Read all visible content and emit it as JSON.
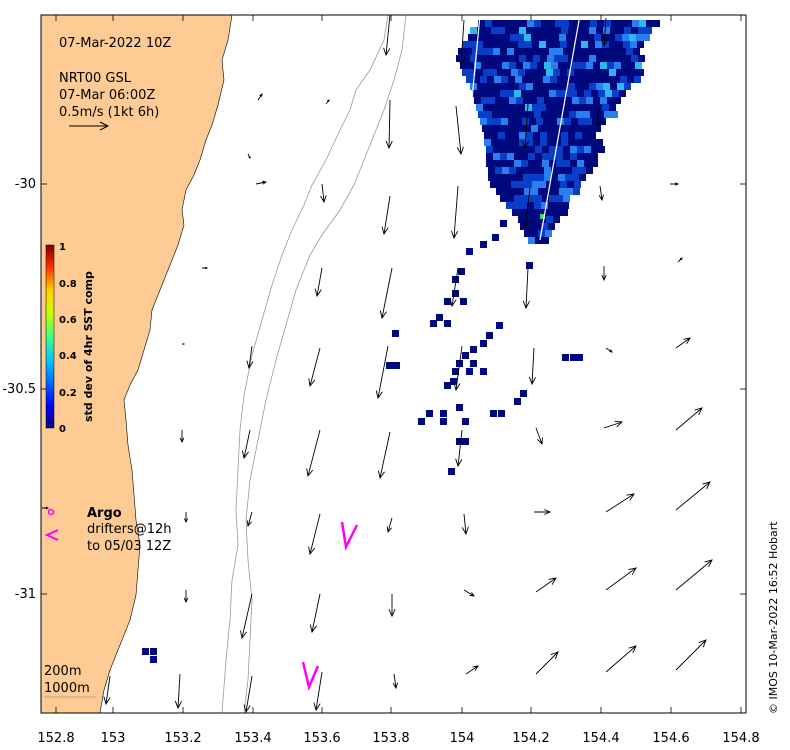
{
  "header": {
    "date": "07-Mar-2022 10Z",
    "product": "NRT00 GSL",
    "time": "07-Mar 06:00Z",
    "scale": "0.5m/s (1kt 6h)"
  },
  "colorbar": {
    "label": "std dev of 4hr SST comp",
    "ticks": [
      "1",
      "0.8",
      "0.6",
      "0.4",
      "0.2",
      "0"
    ]
  },
  "axes": {
    "x_ticks": [
      "152.8",
      "153",
      "153.2",
      "153.4",
      "153.6",
      "153.8",
      "154",
      "154.2",
      "154.4",
      "154.6",
      "154.8"
    ],
    "y_ticks": [
      "-30",
      "-30.5",
      "-31"
    ],
    "xlim": [
      152.8,
      154.8
    ],
    "ylim": [
      -31.3,
      -29.6
    ]
  },
  "legend": {
    "argo": "Argo",
    "drifters": "drifters@12h",
    "drifters_to": "to 05/03 12Z",
    "contour_200": "200m",
    "contour_1000": "1000m"
  },
  "credit": "© IMOS 10-Mar-2022 16:52 Hobart",
  "colors": {
    "land": "#fdcb93",
    "drifter": "#ff00ff",
    "sst_dark": "#00087e",
    "sst_mid": "#0a3ec8",
    "sst_light": "#2a7ff0",
    "sst_cyan": "#2fb7f0"
  }
}
